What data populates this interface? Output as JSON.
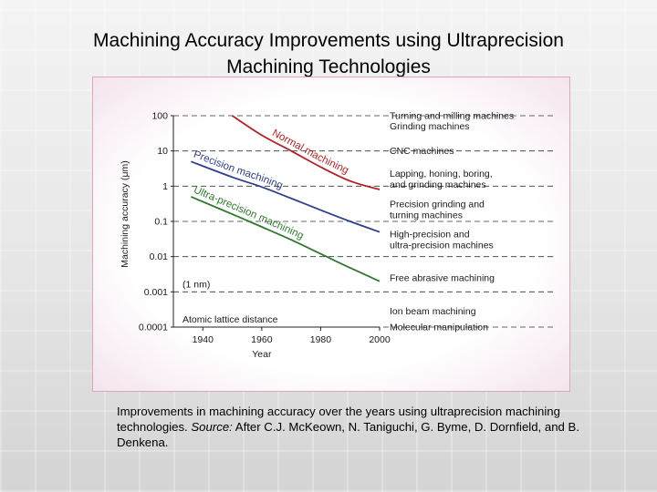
{
  "slide": {
    "title_line1": "Machining Accuracy Improvements using Ultraprecision",
    "title_line2": "Machining Technologies"
  },
  "caption": {
    "text": "Improvements in machining accuracy over the years using ultraprecision machining technologies.",
    "source_label": "Source:",
    "source_text": "After C.J. McKeown, N. Taniguchi, G. Byme, D. Dornfield, and B. Denkena."
  },
  "colors": {
    "normal": "#b22222",
    "precision": "#2e3f8f",
    "ultra": "#2f7a2f"
  },
  "chart_data": {
    "type": "line",
    "xlabel": "Year",
    "ylabel": "Machining accuracy (μm)",
    "x_ticks": [
      1940,
      1960,
      1980,
      2000
    ],
    "xlim": [
      1930,
      2000
    ],
    "y_ticks": [
      {
        "value": 100,
        "label": "100"
      },
      {
        "value": 10,
        "label": "10"
      },
      {
        "value": 1,
        "label": "1"
      },
      {
        "value": 0.1,
        "label": "0.1"
      },
      {
        "value": 0.01,
        "label": "0.01"
      },
      {
        "value": 0.001,
        "label": "0.001"
      },
      {
        "value": 0.0001,
        "label": "0.0001"
      }
    ],
    "ylim": [
      0.0001,
      100
    ],
    "yscale": "log",
    "series": [
      {
        "name": "Normal machining",
        "color_key": "normal",
        "x": [
          1950,
          1960,
          1970,
          1980,
          1990,
          2000
        ],
        "y": [
          100,
          28,
          10,
          3.5,
          1.4,
          0.8
        ]
      },
      {
        "name": "Precision machining",
        "color_key": "precision",
        "x": [
          1936,
          1950,
          1960,
          1970,
          1980,
          1990,
          2000
        ],
        "y": [
          5,
          1.8,
          0.95,
          0.45,
          0.21,
          0.1,
          0.05
        ]
      },
      {
        "name": "Ultra-precision machining",
        "color_key": "ultra",
        "x": [
          1936,
          1950,
          1960,
          1970,
          1980,
          1990,
          2000
        ],
        "y": [
          0.5,
          0.16,
          0.07,
          0.03,
          0.012,
          0.0048,
          0.002
        ]
      }
    ],
    "curve_labels": [
      {
        "text": "Normal machining",
        "series": 0
      },
      {
        "text": "Precision machining",
        "series": 1
      },
      {
        "text": "Ultra-precision machining",
        "series": 2
      }
    ],
    "inner_labels": [
      {
        "text": "(1 nm)",
        "value": 0.001
      },
      {
        "text": "Atomic lattice distance",
        "value": 0.0001
      }
    ],
    "right_labels": [
      {
        "lines": [
          "Turning and milling machines"
        ],
        "value": 100
      },
      {
        "lines": [
          "Grinding machines"
        ],
        "value": 50
      },
      {
        "lines": [
          "CNC machines"
        ],
        "value": 10
      },
      {
        "lines": [
          "Lapping, honing, boring,",
          "and grinding machines"
        ],
        "value": 1.6
      },
      {
        "lines": [
          "Precision grinding and",
          "turning machines"
        ],
        "value": 0.22
      },
      {
        "lines": [
          "High-precision and",
          "ultra-precision machines"
        ],
        "value": 0.03
      },
      {
        "lines": [
          "Free abrasive machining"
        ],
        "value": 0.0025
      },
      {
        "lines": [
          "Ion beam machining"
        ],
        "value": 0.00028
      },
      {
        "lines": [
          "Molecular manipulation"
        ],
        "value": 0.0001
      }
    ]
  }
}
